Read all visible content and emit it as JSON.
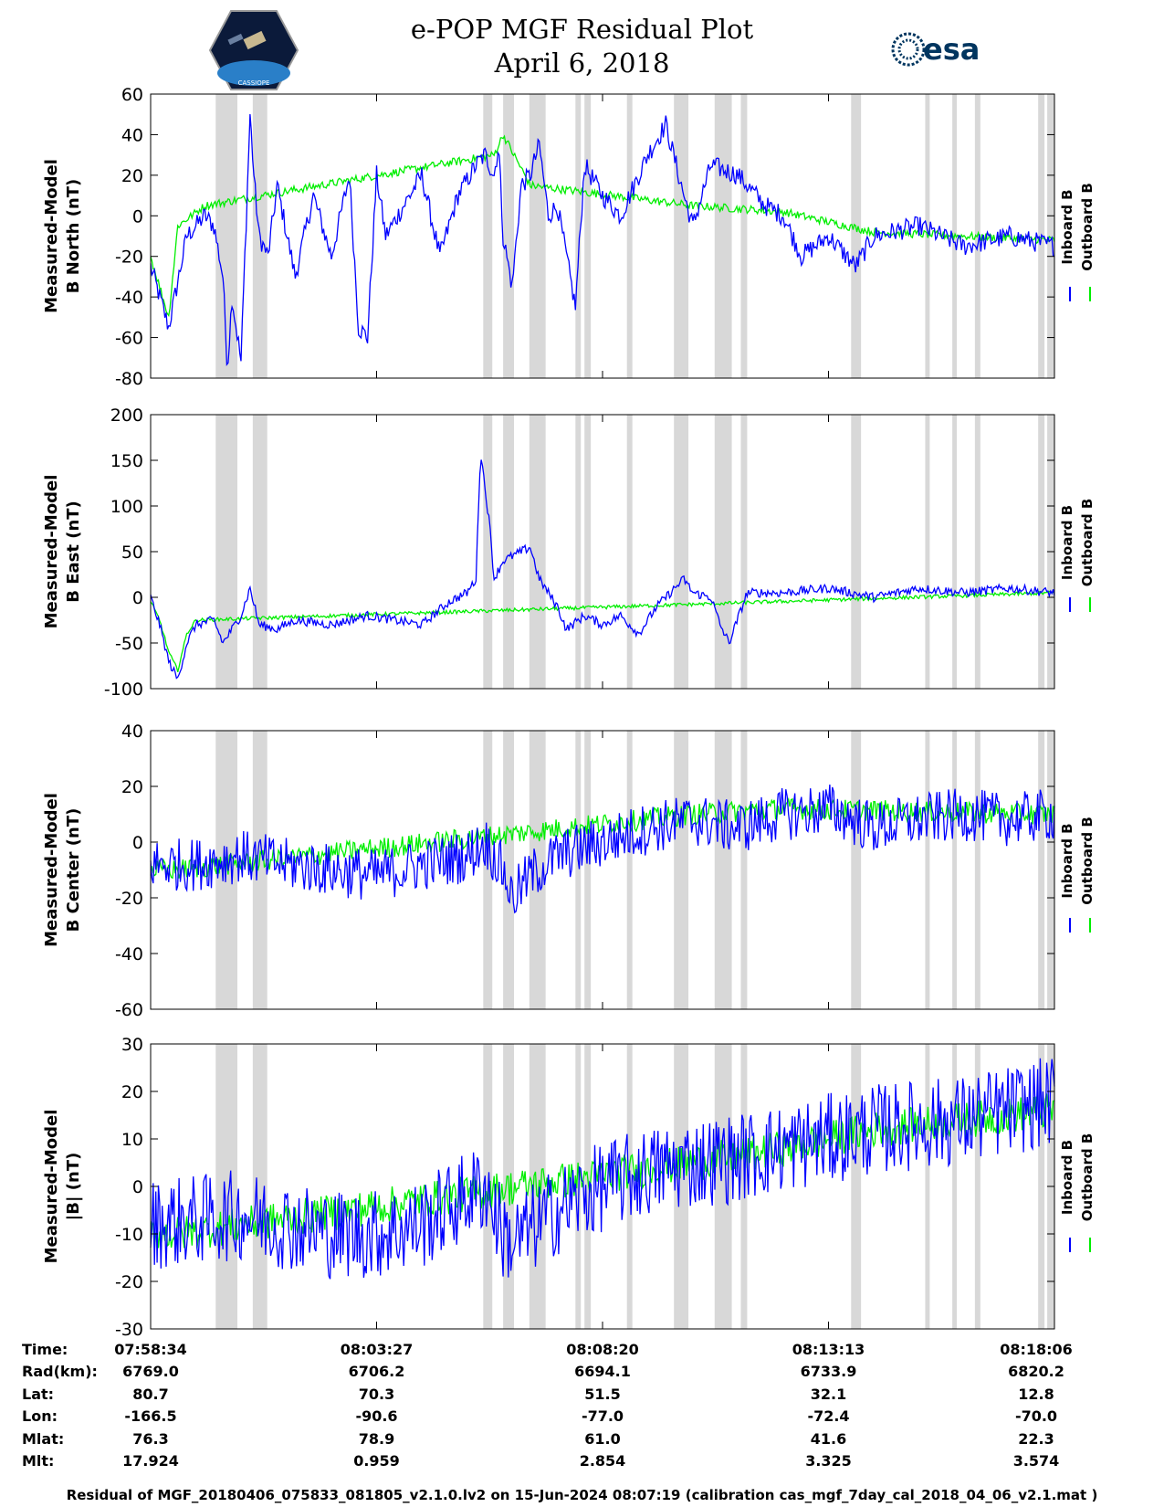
{
  "title": {
    "line1": "e-POP MGF Residual Plot",
    "line2": "April 6, 2018"
  },
  "logos": {
    "cassiope_text": "CASSIOPE",
    "esa_text": "esa"
  },
  "colors": {
    "inboard": "#0000ff",
    "outboard": "#00ee00",
    "gap_band": "#d8d8d8"
  },
  "legend": {
    "inboard": "Inboard B",
    "outboard": "Outboard B"
  },
  "time_axis": {
    "ticks": [
      "07:58:34",
      "08:03:27",
      "08:08:20",
      "08:13:13",
      "08:18:06"
    ]
  },
  "gap_bands": [
    [
      0.072,
      0.096
    ],
    [
      0.113,
      0.129
    ],
    [
      0.368,
      0.378
    ],
    [
      0.39,
      0.402
    ],
    [
      0.419,
      0.437
    ],
    [
      0.47,
      0.476
    ],
    [
      0.48,
      0.487
    ],
    [
      0.527,
      0.533
    ],
    [
      0.579,
      0.595
    ],
    [
      0.624,
      0.643
    ],
    [
      0.653,
      0.66
    ],
    [
      0.775,
      0.786
    ],
    [
      0.857,
      0.862
    ],
    [
      0.887,
      0.892
    ],
    [
      0.912,
      0.918
    ],
    [
      0.982,
      0.989
    ],
    [
      0.992,
      1.0
    ]
  ],
  "chart_data": [
    {
      "type": "line",
      "ylabel": [
        "Measured-Model",
        "B North (nT)"
      ],
      "ylim": [
        -80,
        60
      ],
      "yticks": [
        "60",
        "40",
        "20",
        "0",
        "-20",
        "-40",
        "-60",
        "-80"
      ],
      "series": [
        {
          "name": "Inboard B",
          "color": "#0000ff",
          "x": [
            0,
            0.02,
            0.04,
            0.06,
            0.07,
            0.08,
            0.085,
            0.09,
            0.1,
            0.11,
            0.115,
            0.12,
            0.13,
            0.14,
            0.16,
            0.18,
            0.2,
            0.22,
            0.23,
            0.24,
            0.25,
            0.26,
            0.28,
            0.3,
            0.32,
            0.34,
            0.36,
            0.37,
            0.38,
            0.385,
            0.39,
            0.4,
            0.41,
            0.42,
            0.43,
            0.44,
            0.45,
            0.47,
            0.48,
            0.5,
            0.52,
            0.55,
            0.57,
            0.59,
            0.6,
            0.62,
            0.65,
            0.68,
            0.7,
            0.72,
            0.75,
            0.78,
            0.8,
            0.85,
            0.9,
            0.95,
            1.0
          ],
          "y": [
            -25,
            -55,
            -10,
            0,
            -5,
            -30,
            -75,
            -40,
            -72,
            50,
            15,
            -10,
            -20,
            15,
            -30,
            10,
            -20,
            20,
            -55,
            -60,
            20,
            -10,
            5,
            20,
            -20,
            10,
            25,
            30,
            20,
            35,
            -10,
            -35,
            15,
            20,
            35,
            0,
            5,
            -45,
            25,
            10,
            0,
            30,
            45,
            10,
            -5,
            25,
            20,
            5,
            0,
            -20,
            -10,
            -25,
            -10,
            -5,
            -15,
            -10,
            -15
          ]
        },
        {
          "name": "Outboard B",
          "color": "#00ee00",
          "x": [
            0,
            0.02,
            0.03,
            0.06,
            0.38,
            0.39,
            0.42,
            0.6,
            0.7,
            0.8,
            1.0
          ],
          "y": [
            -20,
            -50,
            -5,
            5,
            30,
            40,
            15,
            5,
            2,
            -8,
            -12
          ]
        }
      ]
    },
    {
      "type": "line",
      "ylabel": [
        "Measured-Model",
        "B East (nT)"
      ],
      "ylim": [
        -100,
        200
      ],
      "yticks": [
        "200",
        "150",
        "100",
        "50",
        "0",
        "-50",
        "-100"
      ],
      "series": [
        {
          "name": "Inboard B",
          "color": "#0000ff",
          "x": [
            0,
            0.01,
            0.02,
            0.03,
            0.04,
            0.05,
            0.07,
            0.08,
            0.1,
            0.11,
            0.12,
            0.14,
            0.16,
            0.2,
            0.24,
            0.3,
            0.33,
            0.34,
            0.35,
            0.36,
            0.365,
            0.37,
            0.375,
            0.38,
            0.39,
            0.42,
            0.43,
            0.45,
            0.46,
            0.48,
            0.5,
            0.52,
            0.54,
            0.56,
            0.58,
            0.59,
            0.6,
            0.62,
            0.63,
            0.64,
            0.66,
            0.7,
            0.75,
            0.8,
            0.85,
            0.9,
            0.95,
            1.0
          ],
          "y": [
            0,
            -30,
            -70,
            -90,
            -50,
            -30,
            -25,
            -50,
            -20,
            10,
            -30,
            -35,
            -25,
            -30,
            -20,
            -30,
            -5,
            0,
            5,
            20,
            160,
            120,
            80,
            20,
            40,
            55,
            20,
            -10,
            -35,
            -20,
            -30,
            -20,
            -40,
            -10,
            10,
            20,
            5,
            0,
            -30,
            -50,
            5,
            5,
            10,
            0,
            10,
            5,
            10,
            5
          ]
        },
        {
          "name": "Outboard B",
          "color": "#00ee00",
          "x": [
            0,
            0.01,
            0.02,
            0.03,
            0.04,
            0.05,
            1.0
          ],
          "y": [
            -5,
            -25,
            -60,
            -80,
            -40,
            -25,
            5
          ]
        }
      ]
    },
    {
      "type": "line",
      "ylabel": [
        "Measured-Model",
        "B Center (nT)"
      ],
      "ylim": [
        -60,
        40
      ],
      "yticks": [
        "40",
        "20",
        "0",
        "-20",
        "-40",
        "-60"
      ],
      "series": [
        {
          "name": "Inboard B",
          "color": "#0000ff",
          "x": [
            0,
            0.05,
            0.1,
            0.15,
            0.2,
            0.25,
            0.3,
            0.35,
            0.37,
            0.38,
            0.39,
            0.4,
            0.42,
            0.45,
            0.5,
            0.55,
            0.6,
            0.65,
            0.7,
            0.75,
            0.8,
            0.85,
            0.9,
            0.95,
            1.0
          ],
          "y": [
            -8,
            -8,
            -5,
            -8,
            -10,
            -12,
            -8,
            -5,
            0,
            -5,
            -10,
            -20,
            -12,
            -5,
            0,
            5,
            8,
            5,
            10,
            12,
            5,
            8,
            10,
            8,
            10
          ]
        },
        {
          "name": "Outboard B",
          "color": "#00ee00",
          "x": [
            0,
            0.03,
            0.6,
            0.7,
            1.0
          ],
          "y": [
            -10,
            -10,
            10,
            12,
            10
          ]
        }
      ]
    },
    {
      "type": "line",
      "ylabel": [
        "Measured-Model",
        "|B| (nT)"
      ],
      "ylim": [
        -30,
        30
      ],
      "yticks": [
        "30",
        "20",
        "10",
        "0",
        "-10",
        "-20",
        "-30"
      ],
      "series": [
        {
          "name": "Inboard B",
          "color": "#0000ff",
          "x": [
            0,
            0.05,
            0.1,
            0.15,
            0.2,
            0.25,
            0.3,
            0.35,
            0.37,
            0.38,
            0.39,
            0.4,
            0.45,
            0.5,
            0.55,
            0.6,
            0.65,
            0.7,
            0.75,
            0.8,
            0.85,
            0.9,
            0.95,
            1.0
          ],
          "y": [
            -8,
            -7,
            -6,
            -8,
            -10,
            -10,
            -8,
            -2,
            0,
            -5,
            -10,
            -12,
            -5,
            0,
            3,
            5,
            6,
            8,
            10,
            12,
            13,
            14,
            16,
            18
          ]
        },
        {
          "name": "Outboard B",
          "color": "#00ee00",
          "x": [
            0,
            0.03,
            0.6,
            0.7,
            0.8,
            0.9,
            1.0
          ],
          "y": [
            -10,
            -10,
            5,
            8,
            12,
            14,
            16
          ]
        }
      ]
    }
  ],
  "ephemeris": {
    "labels": [
      "Time:",
      "Rad(km):",
      "Lat:",
      "Lon:",
      "Mlat:",
      "Mlt:"
    ],
    "columns": [
      [
        "07:58:34",
        "6769.0",
        "80.7",
        "-166.5",
        "76.3",
        "17.924"
      ],
      [
        "08:03:27",
        "6706.2",
        "70.3",
        "-90.6",
        "78.9",
        "0.959"
      ],
      [
        "08:08:20",
        "6694.1",
        "51.5",
        "-77.0",
        "61.0",
        "2.854"
      ],
      [
        "08:13:13",
        "6733.9",
        "32.1",
        "-72.4",
        "41.6",
        "3.325"
      ],
      [
        "08:18:06",
        "6820.2",
        "12.8",
        "-70.0",
        "22.3",
        "3.574"
      ]
    ]
  },
  "footer": "Residual of MGF_20180406_075833_081805_v2.1.0.lv2 on 15-Jun-2024 08:07:19 (calibration cas_mgf_7day_cal_2018_04_06_v2.1.mat )"
}
